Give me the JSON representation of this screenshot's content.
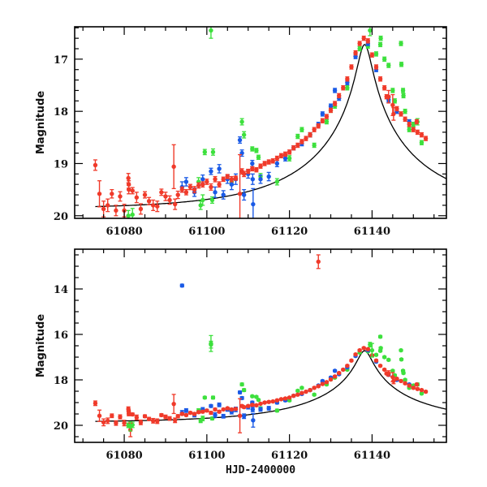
{
  "chart_data": [
    {
      "type": "scatter",
      "title": "",
      "xlabel": "",
      "ylabel": "Magnitude",
      "xlim": [
        61068,
        61158
      ],
      "ylim": [
        20.05,
        16.38
      ],
      "y_inverted": true,
      "xticks": [
        61080,
        61100,
        61120,
        61140
      ],
      "xtick_labels": [
        "61080",
        "61100",
        "61120",
        "61140"
      ],
      "yticks": [
        17,
        18,
        19,
        20
      ],
      "ytick_labels": [
        "17",
        "18",
        "19",
        "20"
      ],
      "grid": false,
      "legend": "none",
      "model": {
        "t0": 61138.2,
        "u0": 0.055,
        "tE": 29,
        "base": 19.87,
        "color": "#000000"
      },
      "series": [
        {
          "name": "red",
          "color": "#f03a2a",
          "points": [
            [
              61073,
              19.03,
              0.1
            ],
            [
              61074,
              19.58,
              0.25
            ],
            [
              61075,
              19.87,
              0.15
            ],
            [
              61076,
              19.8,
              0.12
            ],
            [
              61077,
              19.58,
              0.08
            ],
            [
              61078,
              19.9,
              0.1
            ],
            [
              61079,
              19.63,
              0.09
            ],
            [
              61080,
              19.9,
              0.12
            ],
            [
              61081,
              19.28,
              0.09
            ],
            [
              61081.1,
              19.5,
              0.08
            ],
            [
              61081.1,
              19.4,
              0.07
            ],
            [
              61082,
              19.52,
              0.06
            ],
            [
              61083,
              19.65,
              0.1
            ],
            [
              61084,
              19.87,
              0.1
            ],
            [
              61085,
              19.6,
              0.06
            ],
            [
              61086,
              19.72,
              0.07
            ],
            [
              61087,
              19.8,
              0.1
            ],
            [
              61088,
              19.82,
              0.1
            ],
            [
              61089,
              19.55,
              0.06
            ],
            [
              61090,
              19.63,
              0.08
            ],
            [
              61091,
              19.7,
              0.08
            ],
            [
              61092,
              19.06,
              0.42
            ],
            [
              61092.3,
              19.78,
              0.1
            ],
            [
              61093,
              19.6,
              0.07
            ],
            [
              61094,
              19.5,
              0.05
            ],
            [
              61095,
              19.55,
              0.05
            ],
            [
              61096,
              19.45,
              0.05
            ],
            [
              61097,
              19.5,
              0.06
            ],
            [
              61098,
              19.42,
              0.05
            ],
            [
              61099,
              19.4,
              0.05
            ],
            [
              61100,
              19.35,
              0.05
            ],
            [
              61101,
              19.45,
              0.06
            ],
            [
              61102,
              19.3,
              0.05
            ],
            [
              61103,
              19.4,
              0.05
            ],
            [
              61104,
              19.3,
              0.04
            ],
            [
              61105,
              19.25,
              0.04
            ],
            [
              61106,
              19.3,
              0.05
            ],
            [
              61107,
              19.28,
              0.04
            ],
            [
              61108,
              19.58,
              0.75
            ],
            [
              61108.5,
              19.15,
              0.05
            ],
            [
              61109,
              19.2,
              0.05
            ],
            [
              61110,
              19.15,
              0.04
            ],
            [
              61111,
              19.1,
              0.04
            ],
            [
              61112,
              19.12,
              0.04
            ],
            [
              61113,
              19.05,
              0.04
            ],
            [
              61114,
              19.0,
              0.04
            ],
            [
              61115,
              18.97,
              0.04
            ],
            [
              61116,
              18.95,
              0.04
            ],
            [
              61117,
              18.9,
              0.04
            ],
            [
              61118,
              18.85,
              0.04
            ],
            [
              61119,
              18.82,
              0.04
            ],
            [
              61120,
              18.78,
              0.04
            ],
            [
              61121,
              18.7,
              0.04
            ],
            [
              61122,
              18.65,
              0.04
            ],
            [
              61123,
              18.58,
              0.04
            ],
            [
              61124,
              18.52,
              0.04
            ],
            [
              61125,
              18.45,
              0.04
            ],
            [
              61126,
              18.35,
              0.04
            ],
            [
              61127,
              18.28,
              0.04
            ],
            [
              61128,
              18.18,
              0.04
            ],
            [
              61129,
              18.1,
              0.04
            ],
            [
              61130,
              17.98,
              0.04
            ],
            [
              61131,
              17.85,
              0.04
            ],
            [
              61132,
              17.7,
              0.04
            ],
            [
              61133,
              17.55,
              0.04
            ],
            [
              61134,
              17.38,
              0.04
            ],
            [
              61135,
              17.15,
              0.04
            ],
            [
              61136,
              16.88,
              0.04
            ],
            [
              61137,
              16.7,
              0.04
            ],
            [
              61138,
              16.6,
              0.04
            ],
            [
              61139,
              16.65,
              0.04
            ],
            [
              61140,
              16.92,
              0.04
            ],
            [
              61141,
              17.15,
              0.04
            ],
            [
              61142,
              17.38,
              0.04
            ],
            [
              61143,
              17.55,
              0.04
            ],
            [
              61143.5,
              17.72,
              0.04
            ],
            [
              61144,
              17.72,
              0.12
            ],
            [
              61145,
              17.88,
              0.2
            ],
            [
              61145.2,
              18.05,
              0.12
            ],
            [
              61146,
              17.95,
              0.04
            ],
            [
              61147,
              18.05,
              0.04
            ],
            [
              61148,
              18.15,
              0.04
            ],
            [
              61149,
              18.25,
              0.04
            ],
            [
              61150,
              18.35,
              0.04
            ],
            [
              61150.8,
              18.2,
              0.04
            ],
            [
              61151,
              18.4,
              0.04
            ],
            [
              61152,
              18.45,
              0.04
            ],
            [
              61153,
              18.52,
              0.04
            ]
          ]
        },
        {
          "name": "blue",
          "color": "#1a5ae6",
          "points": [
            [
              61094,
              19.45,
              0.1
            ],
            [
              61095,
              19.35,
              0.08
            ],
            [
              61097,
              19.55,
              0.08
            ],
            [
              61099,
              19.3,
              0.08
            ],
            [
              61101,
              19.15,
              0.06
            ],
            [
              61102,
              19.55,
              0.1
            ],
            [
              61103,
              19.1,
              0.08
            ],
            [
              61104,
              19.6,
              0.08
            ],
            [
              61105,
              19.3,
              0.08
            ],
            [
              61106,
              19.4,
              0.1
            ],
            [
              61107,
              19.3,
              0.1
            ],
            [
              61108,
              18.55,
              0.06
            ],
            [
              61108.5,
              18.8,
              0.06
            ],
            [
              61109,
              19.6,
              0.1
            ],
            [
              61110,
              19.2,
              0.08
            ],
            [
              61111,
              19.0,
              0.06
            ],
            [
              61111.1,
              19.3,
              0.1
            ],
            [
              61111.2,
              19.78,
              0.3
            ],
            [
              61113,
              19.3,
              0.08
            ],
            [
              61115,
              19.25,
              0.08
            ],
            [
              61117,
              19.0,
              0.06
            ],
            [
              61119,
              18.9,
              0.05
            ],
            [
              61121,
              18.7,
              0.04
            ],
            [
              61123,
              18.62,
              0.04
            ],
            [
              61125,
              18.45,
              0.04
            ],
            [
              61127,
              18.25,
              0.04
            ],
            [
              61128,
              18.05,
              0.04
            ],
            [
              61130,
              17.9,
              0.04
            ],
            [
              61131,
              17.6,
              0.04
            ],
            [
              61132,
              17.75,
              0.04
            ],
            [
              61134,
              17.45,
              0.04
            ],
            [
              61136,
              16.95,
              0.04
            ],
            [
              61139,
              16.7,
              0.04
            ],
            [
              61141,
              17.2,
              0.04
            ],
            [
              61144,
              17.78,
              0.04
            ],
            [
              61146,
              18.0,
              0.04
            ],
            [
              61149,
              18.2,
              0.04
            ]
          ]
        },
        {
          "name": "green",
          "color": "#3de03d",
          "points": [
            [
              61081,
              20.0,
              0.1
            ],
            [
              61082,
              19.98,
              0.12
            ],
            [
              61098,
              19.35,
              0.08
            ],
            [
              61098.5,
              19.8,
              0.08
            ],
            [
              61099,
              19.7,
              0.1
            ],
            [
              61101,
              16.45,
              0.15
            ],
            [
              61099.5,
              18.78,
              0.05
            ],
            [
              61101.5,
              18.78,
              0.06
            ],
            [
              61101.3,
              19.7,
              0.06
            ],
            [
              61106,
              19.35,
              0.06
            ],
            [
              61108.5,
              18.2,
              0.06
            ],
            [
              61109,
              18.45,
              0.06
            ],
            [
              61111,
              18.72,
              0.04
            ],
            [
              61112,
              18.75,
              0.04
            ],
            [
              61112.5,
              18.88,
              0.04
            ],
            [
              61113,
              19.25,
              0.06
            ],
            [
              61117,
              19.35,
              0.06
            ],
            [
              61120,
              18.9,
              0.05
            ],
            [
              61122,
              18.48,
              0.04
            ],
            [
              61123,
              18.35,
              0.04
            ],
            [
              61125,
              18.45,
              0.04
            ],
            [
              61126,
              18.65,
              0.04
            ],
            [
              61129,
              18.2,
              0.04
            ],
            [
              61130,
              17.98,
              0.04
            ],
            [
              61131,
              17.9,
              0.04
            ],
            [
              61134,
              17.55,
              0.04
            ],
            [
              61137,
              16.8,
              0.04
            ],
            [
              61139,
              16.75,
              0.04
            ],
            [
              61139.5,
              16.45,
              0.1
            ],
            [
              61141,
              16.9,
              0.04
            ],
            [
              61142,
              16.72,
              0.04
            ],
            [
              61142.1,
              16.6,
              0.04
            ],
            [
              61143,
              17.0,
              0.04
            ],
            [
              61144,
              17.12,
              0.04
            ],
            [
              61145,
              17.6,
              0.04
            ],
            [
              61145.5,
              17.8,
              0.04
            ],
            [
              61147,
              16.7,
              0.04
            ],
            [
              61147.1,
              17.1,
              0.04
            ],
            [
              61147.5,
              17.6,
              0.04
            ],
            [
              61147.6,
              17.7,
              0.04
            ],
            [
              61148,
              18.0,
              0.04
            ],
            [
              61149,
              18.35,
              0.04
            ],
            [
              61150,
              18.25,
              0.04
            ],
            [
              61151,
              18.2,
              0.06
            ],
            [
              61152,
              18.6,
              0.04
            ]
          ]
        }
      ]
    },
    {
      "type": "scatter",
      "title": "",
      "xlabel": "HJD-2400000",
      "ylabel": "Magnitude",
      "xlim": [
        61068,
        61158
      ],
      "ylim": [
        20.75,
        12.25
      ],
      "y_inverted": true,
      "xticks": [
        61080,
        61100,
        61120,
        61140
      ],
      "xtick_labels": [
        "61080",
        "61100",
        "61120",
        "61140"
      ],
      "yticks": [
        14,
        16,
        18,
        20
      ],
      "ytick_labels": [
        "14",
        "16",
        "18",
        "20"
      ],
      "grid": false,
      "legend": "none",
      "model": {
        "t0": 61138.2,
        "u0": 0.055,
        "tE": 29,
        "base": 19.87,
        "color": "#000000"
      },
      "extra_points": [
        {
          "series": "blue",
          "point": [
            61094,
            13.85,
            0.06
          ]
        },
        {
          "series": "green",
          "point": [
            61101,
            16.4,
            0.35
          ]
        },
        {
          "series": "red",
          "point": [
            61127,
            12.8,
            0.3
          ]
        },
        {
          "series": "red",
          "point": [
            61081.5,
            20.2,
            0.3
          ]
        },
        {
          "series": "green",
          "point": [
            61081.5,
            20.05,
            0.2
          ]
        },
        {
          "series": "green",
          "point": [
            61140,
            16.7,
            0.3
          ]
        },
        {
          "series": "green",
          "point": [
            61142,
            16.1,
            0.05
          ]
        }
      ]
    }
  ]
}
